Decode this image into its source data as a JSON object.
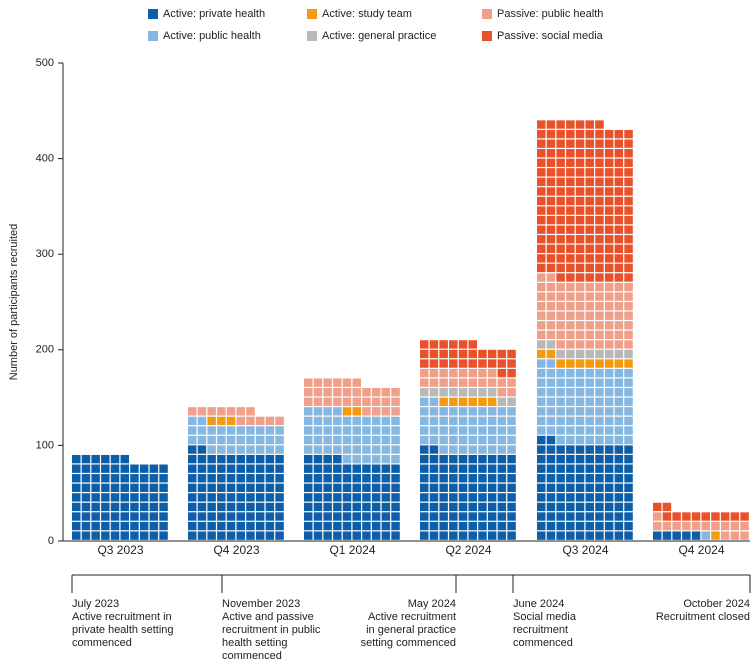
{
  "chart_data": {
    "type": "waffle",
    "y_label": "Number of participants recruited",
    "categories": [
      "Q3 2023",
      "Q4 2023",
      "Q1 2024",
      "Q2 2024",
      "Q3 2024",
      "Q4 2024"
    ],
    "series": [
      {
        "name": "Active: private health",
        "color": "#0d5ea8",
        "values": [
          86,
          92,
          84,
          92,
          102,
          5
        ]
      },
      {
        "name": "Active: public health",
        "color": "#85b7e0",
        "values": [
          0,
          30,
          50,
          50,
          80,
          1
        ]
      },
      {
        "name": "Active: study team",
        "color": "#f59a0f",
        "values": [
          0,
          3,
          2,
          6,
          10,
          1
        ]
      },
      {
        "name": "Active: general practice",
        "color": "#b8b8b8",
        "values": [
          0,
          0,
          0,
          10,
          10,
          0
        ]
      },
      {
        "name": "Passive: public health",
        "color": "#f0a08a",
        "values": [
          0,
          12,
          30,
          20,
          70,
          14
        ]
      },
      {
        "name": "Passive: social media",
        "color": "#e8512a",
        "values": [
          0,
          0,
          0,
          28,
          165,
          11
        ]
      }
    ],
    "ylim": [
      0,
      500
    ],
    "yticks": [
      0,
      100,
      200,
      300,
      400,
      500
    ],
    "timeline": [
      {
        "date": "July 2023",
        "lines": [
          "Active recruitment in",
          "private health setting",
          "commenced"
        ]
      },
      {
        "date": "November 2023",
        "lines": [
          "Active and passive",
          "recruitment in public",
          "health setting",
          "commenced"
        ]
      },
      {
        "date": "May 2024",
        "lines": [
          "Active recruitment",
          "in general practice",
          "setting commenced"
        ]
      },
      {
        "date": "June 2024",
        "lines": [
          "Social media",
          "recruitment",
          "commenced"
        ]
      },
      {
        "date": "October 2024",
        "lines": [
          "Recruitment closed"
        ]
      }
    ]
  }
}
